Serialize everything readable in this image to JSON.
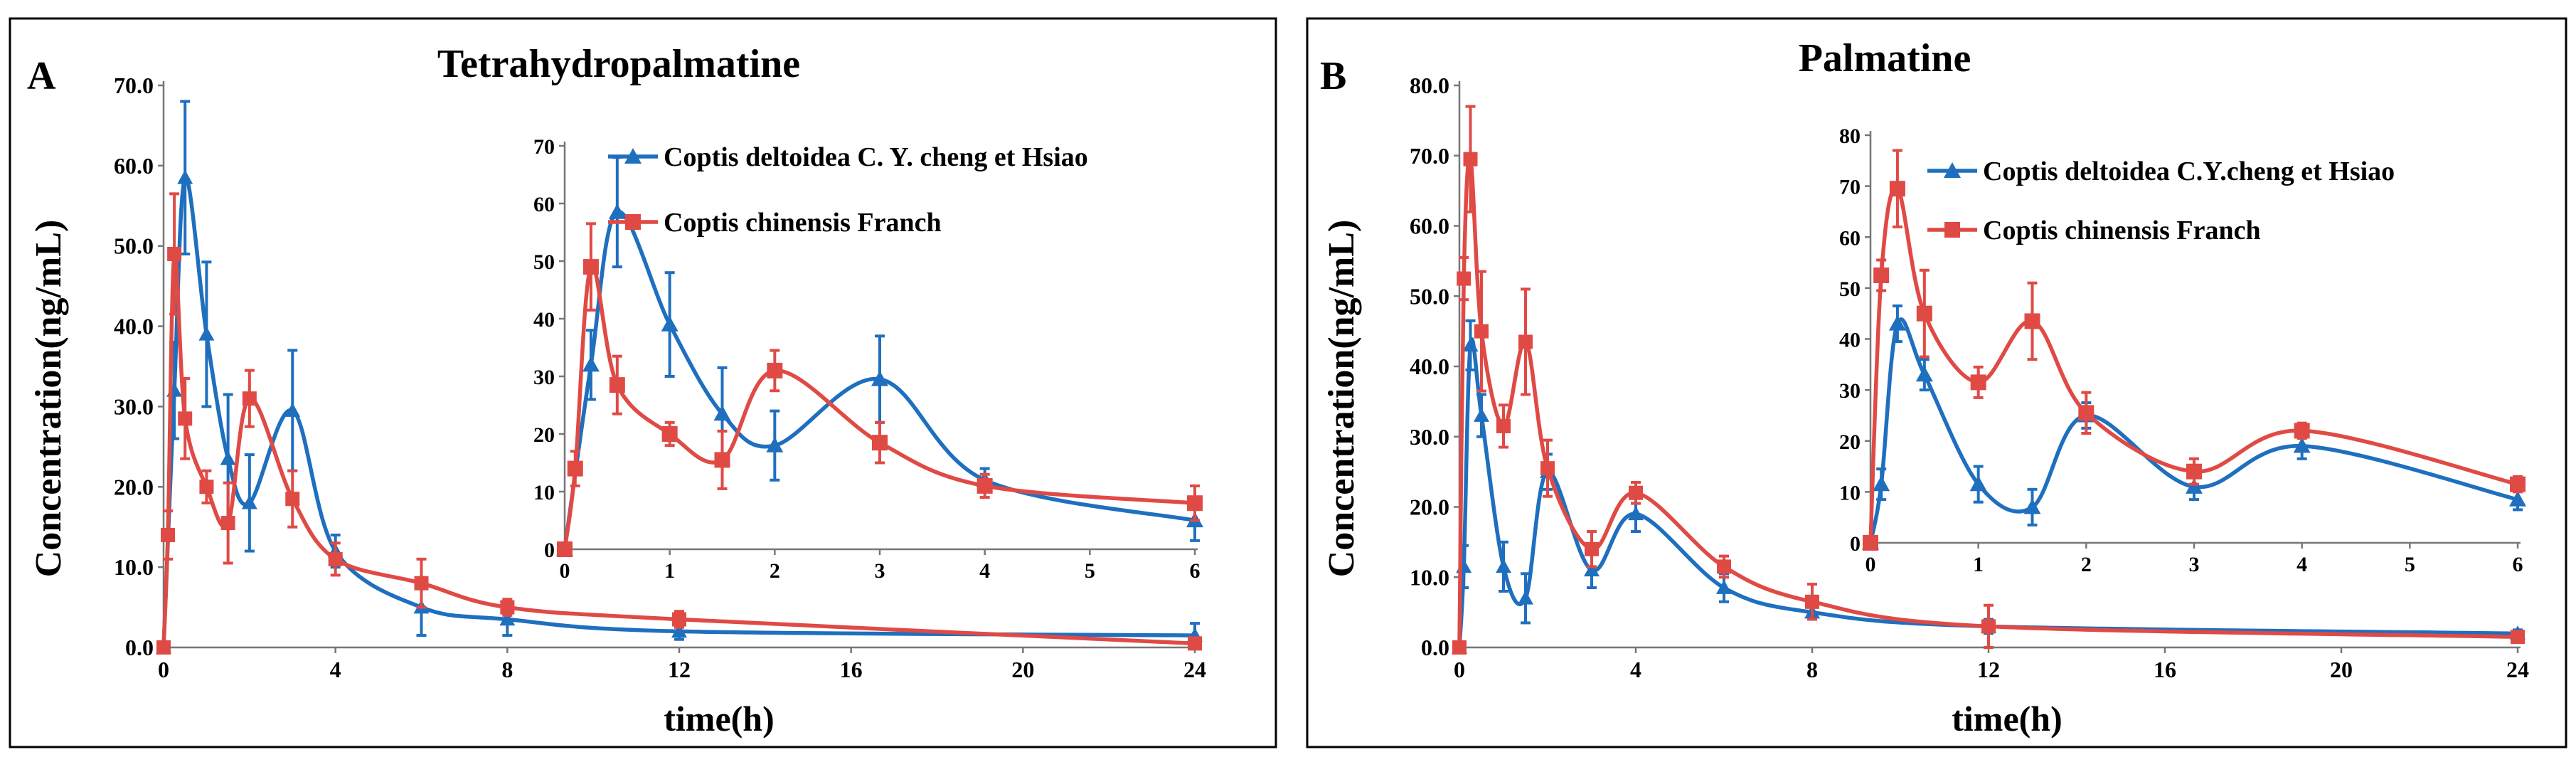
{
  "chart_data": [
    {
      "type": "line",
      "panel_label": "A",
      "title": "Tetrahydropalmatine",
      "xlabel": "time(h)",
      "ylabel": "Concentration(ng/mL)",
      "xlim": [
        0,
        24
      ],
      "ylim": [
        0,
        70
      ],
      "xticks": [
        "0",
        "4",
        "8",
        "12",
        "16",
        "20",
        "24"
      ],
      "yticks": [
        "0.0",
        "10.0",
        "20.0",
        "30.0",
        "40.0",
        "50.0",
        "60.0",
        "70.0"
      ],
      "legend": "inset-top",
      "series": [
        {
          "name": "Coptis deltoidea C. Y. cheng et Hsiao",
          "color": "#1f6fbf",
          "marker": "triangle",
          "x": [
            0,
            0.25,
            0.5,
            1,
            1.5,
            2,
            3,
            4,
            6,
            8,
            12,
            24
          ],
          "y": [
            0,
            32,
            58.5,
            39,
            23.5,
            18,
            29.5,
            12,
            5,
            3.5,
            2,
            1.5
          ],
          "err": [
            0,
            6,
            9.5,
            9,
            8,
            6,
            7.5,
            2,
            3.5,
            2,
            1,
            1.5
          ]
        },
        {
          "name": "Coptis chinensis Franch",
          "color": "#e04a45",
          "marker": "square",
          "x": [
            0,
            0.1,
            0.25,
            0.5,
            1,
            1.5,
            2,
            3,
            4,
            6,
            8,
            12,
            24
          ],
          "y": [
            0,
            14,
            49,
            28.5,
            20,
            15.5,
            31,
            18.5,
            11,
            8,
            5,
            3.5,
            0.5
          ],
          "err": [
            0,
            3,
            7.5,
            5,
            2,
            5,
            3.5,
            3.5,
            2,
            3,
            1,
            1,
            0.5
          ]
        }
      ],
      "inset": {
        "xlim": [
          0,
          6
        ],
        "ylim": [
          0,
          70
        ],
        "xticks": [
          "0",
          "1",
          "2",
          "3",
          "4",
          "5",
          "6"
        ],
        "yticks": [
          "0",
          "10",
          "20",
          "30",
          "40",
          "50",
          "60",
          "70"
        ]
      }
    },
    {
      "type": "line",
      "panel_label": "B",
      "title": "Palmatine",
      "xlabel": "time(h)",
      "ylabel": "Concentration(ng/mL)",
      "xlim": [
        0,
        24
      ],
      "ylim": [
        0,
        80
      ],
      "xticks": [
        "0",
        "4",
        "8",
        "12",
        "16",
        "20",
        "24"
      ],
      "yticks": [
        "0.0",
        "10.0",
        "20.0",
        "30.0",
        "40.0",
        "50.0",
        "60.0",
        "70.0",
        "80.0"
      ],
      "legend": "inset-top",
      "series": [
        {
          "name": "Coptis deltoidea C.Y.cheng et Hsiao",
          "color": "#1f6fbf",
          "marker": "triangle",
          "x": [
            0,
            0.1,
            0.25,
            0.5,
            1,
            1.5,
            2,
            3,
            4,
            6,
            8,
            12,
            24
          ],
          "y": [
            0,
            11.5,
            43,
            33,
            11.5,
            7,
            25,
            11,
            19,
            8.5,
            5,
            3,
            2
          ],
          "err": [
            0,
            3,
            3.5,
            3,
            3.5,
            3.5,
            2.5,
            2.5,
            2.5,
            2,
            1,
            1,
            0.5
          ]
        },
        {
          "name": "Coptis chinensis Franch",
          "color": "#e04a45",
          "marker": "square",
          "x": [
            0,
            0.1,
            0.25,
            0.5,
            1,
            1.5,
            2,
            3,
            4,
            6,
            8,
            12,
            24
          ],
          "y": [
            0,
            52.5,
            69.5,
            45,
            31.5,
            43.5,
            25.5,
            14,
            22,
            11.5,
            6.5,
            3,
            1.5
          ],
          "err": [
            0,
            3,
            7.5,
            8.5,
            3,
            7.5,
            4,
            2.5,
            1.5,
            1.5,
            2.5,
            3,
            0.5
          ]
        }
      ],
      "inset": {
        "xlim": [
          0,
          6
        ],
        "ylim": [
          0,
          80
        ],
        "xticks": [
          "0",
          "1",
          "2",
          "3",
          "4",
          "5",
          "6"
        ],
        "yticks": [
          "0",
          "10",
          "20",
          "30",
          "40",
          "50",
          "60",
          "70",
          "80"
        ]
      }
    }
  ]
}
